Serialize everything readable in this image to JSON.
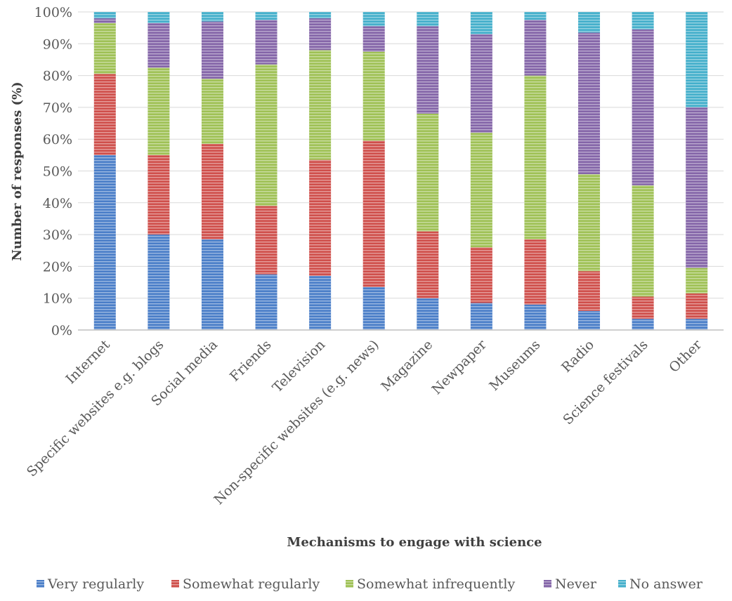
{
  "chart_data": {
    "type": "bar",
    "stacked": true,
    "percent": true,
    "xlabel": "Mechanisms to engage with science",
    "ylabel": "Number of responses (%)",
    "ylim": [
      0,
      100
    ],
    "yticks": [
      "0%",
      "10%",
      "20%",
      "30%",
      "40%",
      "50%",
      "60%",
      "70%",
      "80%",
      "90%",
      "100%"
    ],
    "grid": true,
    "legend_position": "bottom",
    "categories": [
      "Internet",
      "Specific websites e.g. blogs",
      "Social media",
      "Friends",
      "Television",
      "Non-specific websites (e.g. news)",
      "Magazine",
      "Newpaper",
      "Museums",
      "Radio",
      "Science festivals",
      "Other"
    ],
    "series": [
      {
        "name": "Very regularly",
        "color": "#4a7ec8",
        "values": [
          55,
          30,
          28.5,
          17.5,
          17,
          13.5,
          10,
          8.5,
          8,
          6,
          3.5,
          3.5
        ]
      },
      {
        "name": "Somewhat regularly",
        "color": "#cf4f4b",
        "values": [
          25.5,
          25,
          30,
          21.5,
          36.5,
          46,
          21,
          17.5,
          20.5,
          12.5,
          7,
          8
        ]
      },
      {
        "name": "Somewhat infrequently",
        "color": "#9fc155",
        "values": [
          16,
          27.5,
          20.5,
          44.5,
          34.5,
          28,
          37,
          36,
          51.5,
          30.5,
          35,
          8
        ]
      },
      {
        "name": "Never",
        "color": "#8465a8",
        "values": [
          1.5,
          14,
          18,
          14,
          10,
          8,
          27.5,
          31,
          17.5,
          44.5,
          49,
          50.5
        ]
      },
      {
        "name": "No answer",
        "color": "#44afcb",
        "values": [
          2,
          3.5,
          3,
          2.5,
          2,
          4.5,
          4.5,
          7,
          2.5,
          6.5,
          5.5,
          30
        ]
      }
    ]
  }
}
